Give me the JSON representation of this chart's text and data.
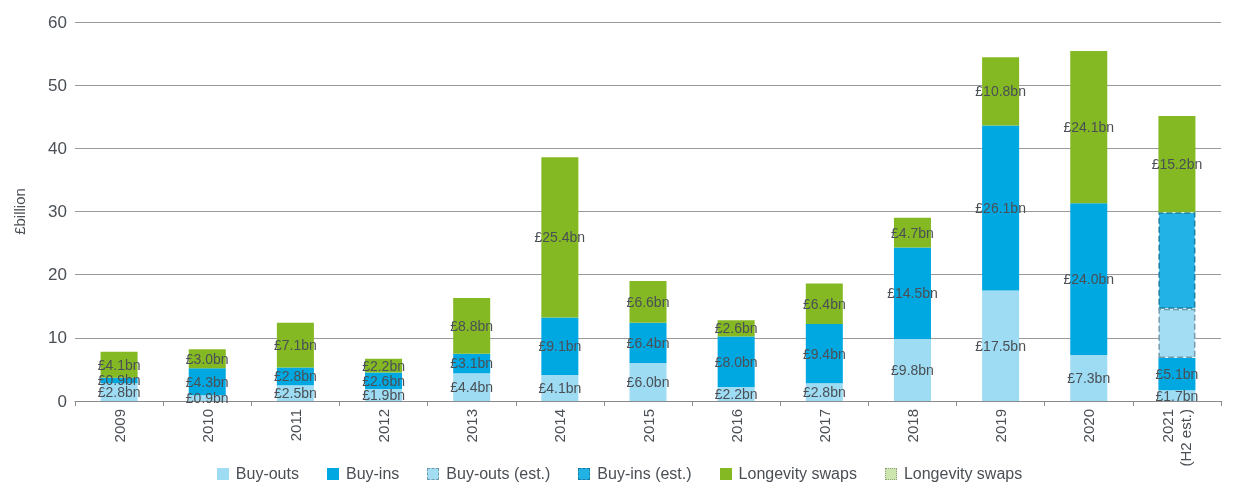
{
  "chart_data": {
    "type": "bar",
    "stacked": true,
    "ylabel": "£billion",
    "categories": [
      "2009",
      "2010",
      "2011",
      "2012",
      "2013",
      "2014",
      "2015",
      "2016",
      "2017",
      "2018",
      "2019",
      "2020",
      "2021\n(H2 est.)"
    ],
    "series": [
      {
        "name": "Buy-outs",
        "color": "#9ddcf3",
        "values": [
          2.8,
          0.9,
          2.5,
          1.9,
          4.4,
          4.1,
          6.0,
          2.2,
          2.8,
          9.8,
          17.5,
          7.3,
          1.7
        ],
        "value_labels": [
          "£2.8bn",
          "£0.9bn",
          "£2.5bn",
          "£1.9bn",
          "£4.4bn",
          "£4.1bn",
          "£6.0bn",
          "£2.2bn",
          "£2.8bn",
          "£9.8bn",
          "£17.5bn",
          "£7.3bn",
          "£1.7bn"
        ]
      },
      {
        "name": "Buy-ins",
        "color": "#00a8e1",
        "values": [
          0.9,
          4.3,
          2.8,
          2.6,
          3.1,
          9.1,
          6.4,
          8.0,
          9.4,
          14.5,
          26.1,
          24.0,
          5.1
        ],
        "value_labels": [
          "£0.9bn",
          "£4.3bn",
          "£2.8bn",
          "£2.6bn",
          "£3.1bn",
          "£9.1bn",
          "£6.4bn",
          "£8.0bn",
          "£9.4bn",
          "£14.5bn",
          "£26.1bn",
          "£24.0bn",
          "£5.1bn"
        ]
      },
      {
        "name": "Buy-outs (est.)",
        "color": "#a3ddf4",
        "line_style": "dashed",
        "values": [
          null,
          null,
          null,
          null,
          null,
          null,
          null,
          null,
          null,
          null,
          null,
          null,
          7.8
        ]
      },
      {
        "name": "Buy-ins (est.)",
        "color": "#22b2e6",
        "line_style": "dashed",
        "values": [
          null,
          null,
          null,
          null,
          null,
          null,
          null,
          null,
          null,
          null,
          null,
          null,
          15.3
        ]
      },
      {
        "name": "Longevity swaps",
        "color": "#84b924",
        "values": [
          4.1,
          3.0,
          7.1,
          2.2,
          8.8,
          25.4,
          6.6,
          2.6,
          6.4,
          4.7,
          10.8,
          24.1,
          15.2
        ],
        "value_labels": [
          "£4.1bn",
          "£3.0bn",
          "£7.1bn",
          "£2.2bn",
          "£8.8bn",
          "£25.4bn",
          "£6.6bn",
          "£2.6bn",
          "£6.4bn",
          "£4.7bn",
          "£10.8bn",
          "£24.1bn",
          "£15.2bn"
        ]
      },
      {
        "name": "Longevity swaps",
        "color": "#cde6b0",
        "line_style": "dotted",
        "values": [
          null,
          null,
          null,
          null,
          null,
          null,
          null,
          null,
          null,
          null,
          null,
          null,
          null
        ]
      }
    ],
    "ylim": [
      0,
      60
    ],
    "yticks": [
      0,
      10,
      20,
      30,
      40,
      50,
      60
    ],
    "grid": "y",
    "legend": "bottom"
  }
}
